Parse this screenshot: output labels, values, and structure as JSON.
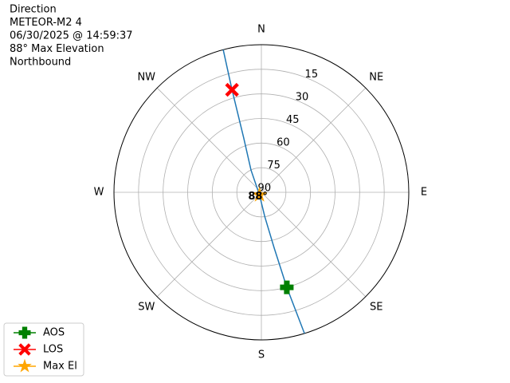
{
  "chart_data": {
    "type": "polar",
    "text_lines": [
      "Direction",
      "METEOR-M2 4",
      "06/30/2025 @ 14:59:37",
      "88° Max Elevation",
      "Northbound"
    ],
    "xticks": [
      {
        "value": 0,
        "label": "N"
      },
      {
        "value": 45,
        "label": "NE"
      },
      {
        "value": 90,
        "label": "E"
      },
      {
        "value": 135,
        "label": "SE"
      },
      {
        "value": 180,
        "label": "S"
      },
      {
        "value": 225,
        "label": "SW"
      },
      {
        "value": 270,
        "label": "W"
      },
      {
        "value": 315,
        "label": "NW"
      }
    ],
    "ylim": [
      90,
      0
    ],
    "yticks": [
      15,
      30,
      45,
      60,
      75,
      90
    ],
    "grid": true,
    "legend": "lower left",
    "series": [
      {
        "color": "#1f77b4",
        "x": [
          163,
          165,
          167,
          172,
          215,
          335,
          342,
          344,
          345
        ],
        "values": [
          0,
          30,
          55,
          75,
          88,
          75,
          55,
          25,
          0
        ]
      },
      {
        "name": "AOS",
        "color": "green",
        "marker": "plus",
        "x": [
          165
        ],
        "values": [
          30
        ]
      },
      {
        "name": "LOS",
        "color": "red",
        "marker": "x",
        "x": [
          344
        ],
        "values": [
          25
        ]
      },
      {
        "name": "Max El",
        "color": "orange",
        "marker": "star",
        "x": [
          215
        ],
        "values": [
          88
        ],
        "value_labels": [
          "88°"
        ]
      }
    ]
  }
}
